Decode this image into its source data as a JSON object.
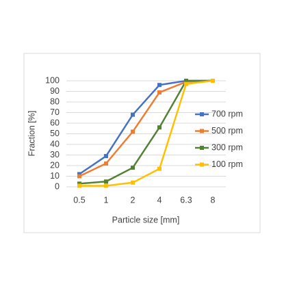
{
  "chart_data": {
    "type": "line",
    "x_label": "Particle size [mm]",
    "y_label": "Fraction [%]",
    "categories": [
      "0.5",
      "1",
      "2",
      "4",
      "6.3",
      "8"
    ],
    "series": [
      {
        "name": "700 rpm",
        "color": "#4472c4",
        "values": [
          12,
          29,
          68,
          96,
          100,
          100
        ]
      },
      {
        "name": "500 rpm",
        "color": "#ed7d31",
        "values": [
          10,
          22,
          52,
          89,
          99,
          100
        ]
      },
      {
        "name": "300 rpm",
        "color": "#548235",
        "values": [
          3,
          5,
          18,
          56,
          100,
          100
        ]
      },
      {
        "name": "100 rpm",
        "color": "#ffc000",
        "values": [
          1,
          1,
          4,
          17,
          97,
          100
        ]
      }
    ],
    "ylim": [
      0,
      100
    ],
    "yticks": [
      0,
      10,
      20,
      30,
      40,
      50,
      60,
      70,
      80,
      90,
      100
    ],
    "grid": true,
    "legend": "right"
  }
}
